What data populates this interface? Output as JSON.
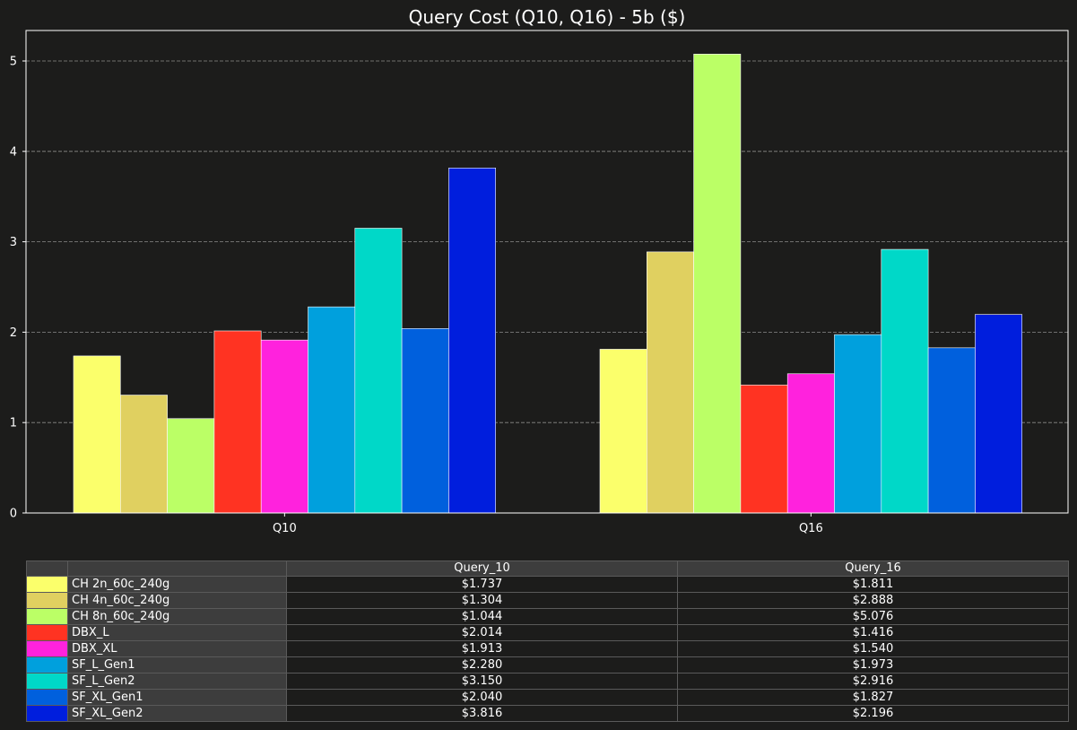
{
  "chart_data": {
    "type": "bar",
    "title": "Query Cost (Q10, Q16) - 5b ($)",
    "xlabel": "",
    "ylabel": "",
    "categories": [
      "Q10",
      "Q16"
    ],
    "ylim": [
      0,
      5.33
    ],
    "yticks": [
      "0",
      "1",
      "2",
      "3",
      "4",
      "5"
    ],
    "grid": true,
    "series": [
      {
        "name": "CH 2n_60c_240g",
        "color": "#fbff6b",
        "values": [
          1.737,
          1.811
        ]
      },
      {
        "name": "CH 4n_60c_240g",
        "color": "#e0d060",
        "values": [
          1.304,
          2.888
        ]
      },
      {
        "name": "CH 8n_60c_240g",
        "color": "#bbff66",
        "values": [
          1.044,
          5.076
        ]
      },
      {
        "name": "DBX_L",
        "color": "#ff3322",
        "values": [
          2.014,
          1.416
        ]
      },
      {
        "name": "DBX_XL",
        "color": "#ff22dd",
        "values": [
          1.913,
          1.54
        ]
      },
      {
        "name": "SF_L_Gen1",
        "color": "#00a0dd",
        "values": [
          2.28,
          1.973
        ]
      },
      {
        "name": "SF_L_Gen2",
        "color": "#00d8c8",
        "values": [
          3.15,
          2.916
        ]
      },
      {
        "name": "SF_XL_Gen1",
        "color": "#0060dd",
        "values": [
          2.04,
          1.827
        ]
      },
      {
        "name": "SF_XL_Gen2",
        "color": "#001edd",
        "values": [
          3.816,
          2.196
        ]
      }
    ]
  },
  "table": {
    "columns": [
      "Query_10",
      "Query_16"
    ],
    "rows": [
      {
        "label": "CH 2n_60c_240g",
        "color": "#fbff6b",
        "values": [
          "$1.737",
          "$1.811"
        ]
      },
      {
        "label": "CH 4n_60c_240g",
        "color": "#e0d060",
        "values": [
          "$1.304",
          "$2.888"
        ]
      },
      {
        "label": "CH 8n_60c_240g",
        "color": "#bbff66",
        "values": [
          "$1.044",
          "$5.076"
        ]
      },
      {
        "label": "DBX_L",
        "color": "#ff3322",
        "values": [
          "$2.014",
          "$1.416"
        ]
      },
      {
        "label": "DBX_XL",
        "color": "#ff22dd",
        "values": [
          "$1.913",
          "$1.540"
        ]
      },
      {
        "label": "SF_L_Gen1",
        "color": "#00a0dd",
        "values": [
          "$2.280",
          "$1.973"
        ]
      },
      {
        "label": "SF_L_Gen2",
        "color": "#00d8c8",
        "values": [
          "$3.150",
          "$2.916"
        ]
      },
      {
        "label": "SF_XL_Gen1",
        "color": "#0060dd",
        "values": [
          "$2.040",
          "$1.827"
        ]
      },
      {
        "label": "SF_XL_Gen2",
        "color": "#001edd",
        "values": [
          "$3.816",
          "$2.196"
        ]
      }
    ]
  }
}
